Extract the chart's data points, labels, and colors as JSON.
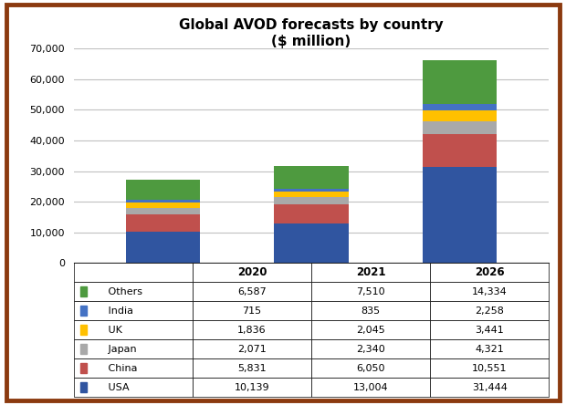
{
  "title_line1": "Global AVOD forecasts by country",
  "title_line2": "($ million)",
  "years": [
    "2020",
    "2021",
    "2026"
  ],
  "categories": [
    "USA",
    "China",
    "Japan",
    "UK",
    "India",
    "Others"
  ],
  "colors": [
    "#3055A0",
    "#C0504D",
    "#A9A9A9",
    "#FFC000",
    "#4472C4",
    "#4E9A3F"
  ],
  "values": {
    "USA": [
      10139,
      13004,
      31444
    ],
    "China": [
      5831,
      6050,
      10551
    ],
    "Japan": [
      2071,
      2340,
      4321
    ],
    "UK": [
      1836,
      2045,
      3441
    ],
    "India": [
      715,
      835,
      2258
    ],
    "Others": [
      6587,
      7510,
      14334
    ]
  },
  "ylim": [
    0,
    70000
  ],
  "yticks": [
    0,
    10000,
    20000,
    30000,
    40000,
    50000,
    60000,
    70000
  ],
  "bar_width": 0.5,
  "table_rows": [
    "Others",
    "India",
    "UK",
    "Japan",
    "China",
    "USA"
  ],
  "table_colors": [
    "#4E9A3F",
    "#4472C4",
    "#FFC000",
    "#A9A9A9",
    "#C0504D",
    "#3055A0"
  ],
  "border_color": "#8B3A0F",
  "background_color": "#FFFFFF",
  "grid_color": "#C0C0C0"
}
